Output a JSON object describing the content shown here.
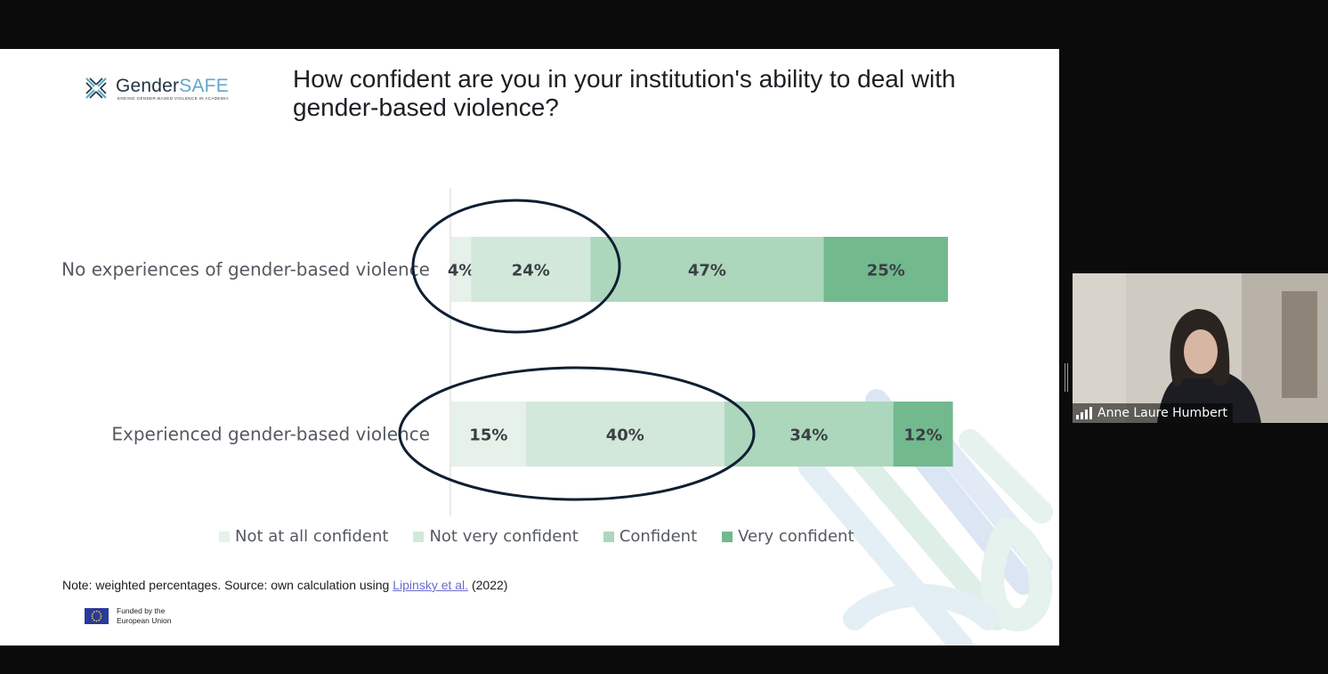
{
  "slide": {
    "logo_brand_part1": "Gender",
    "logo_brand_part2": "SAFE",
    "logo_tagline": "ENDING GENDER-BASED VIOLENCE IN ACADEMIA",
    "title": "How confident are you in your institution's ability to deal with gender-based violence?",
    "note_text": "Note: weighted percentages. Source: own calculation using ",
    "note_link": "Lipinsky et al.",
    "note_year": "(2022)",
    "eu_text_line1": "Funded by the",
    "eu_text_line2": "European Union"
  },
  "chart_data": {
    "type": "bar",
    "orientation": "horizontal-stacked-100",
    "categories": [
      "No experiences of gender-based violence",
      "Experienced gender-based violence"
    ],
    "series": [
      {
        "name": "Not at all confident",
        "values": [
          4,
          15
        ],
        "labels": [
          "4%",
          "15%"
        ],
        "color": "#e6f1ea"
      },
      {
        "name": "Not very confident",
        "values": [
          24,
          40
        ],
        "labels": [
          "24%",
          "40%"
        ],
        "color": "#d2e8da"
      },
      {
        "name": "Confident",
        "values": [
          47,
          34
        ],
        "labels": [
          "47%",
          "34%"
        ],
        "color": "#acd7bd"
      },
      {
        "name": "Very confident",
        "values": [
          25,
          12
        ],
        "labels": [
          "25%",
          "12%"
        ],
        "color": "#72b98e"
      }
    ],
    "xlim": [
      0,
      100
    ],
    "legend_position": "bottom",
    "annotations": "dark ellipses circling the 'Not at all confident' and 'Not very confident' segments of both bars",
    "annotation_color": "#0f1f33"
  },
  "participant": {
    "name": "Anne Laure Humbert"
  }
}
